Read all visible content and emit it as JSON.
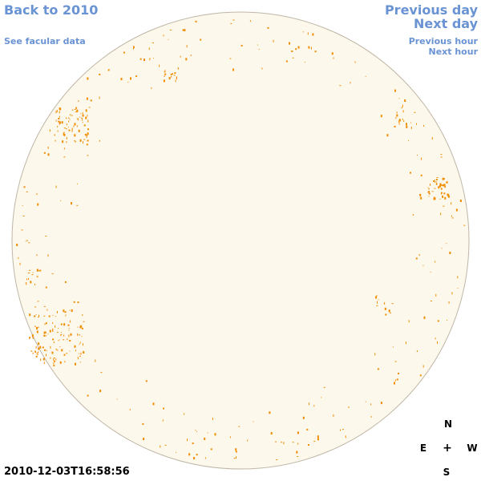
{
  "nav": {
    "back_label": "Back to 2010",
    "facular_label": "See facular data",
    "prev_day_label": "Previous day",
    "next_day_label": "Next day",
    "prev_hour_label": "Previous hour",
    "next_hour_label": "Next hour"
  },
  "timestamp": "2010-12-03T16:58:56",
  "compass": {
    "north": "N",
    "south": "S",
    "east": "E",
    "west": "W",
    "center": "+"
  },
  "colors": {
    "disk_fill": "#fdf8ec",
    "disk_stroke": "#bfb6a6",
    "facula": "#f08c00",
    "link": "#6a93d4"
  }
}
